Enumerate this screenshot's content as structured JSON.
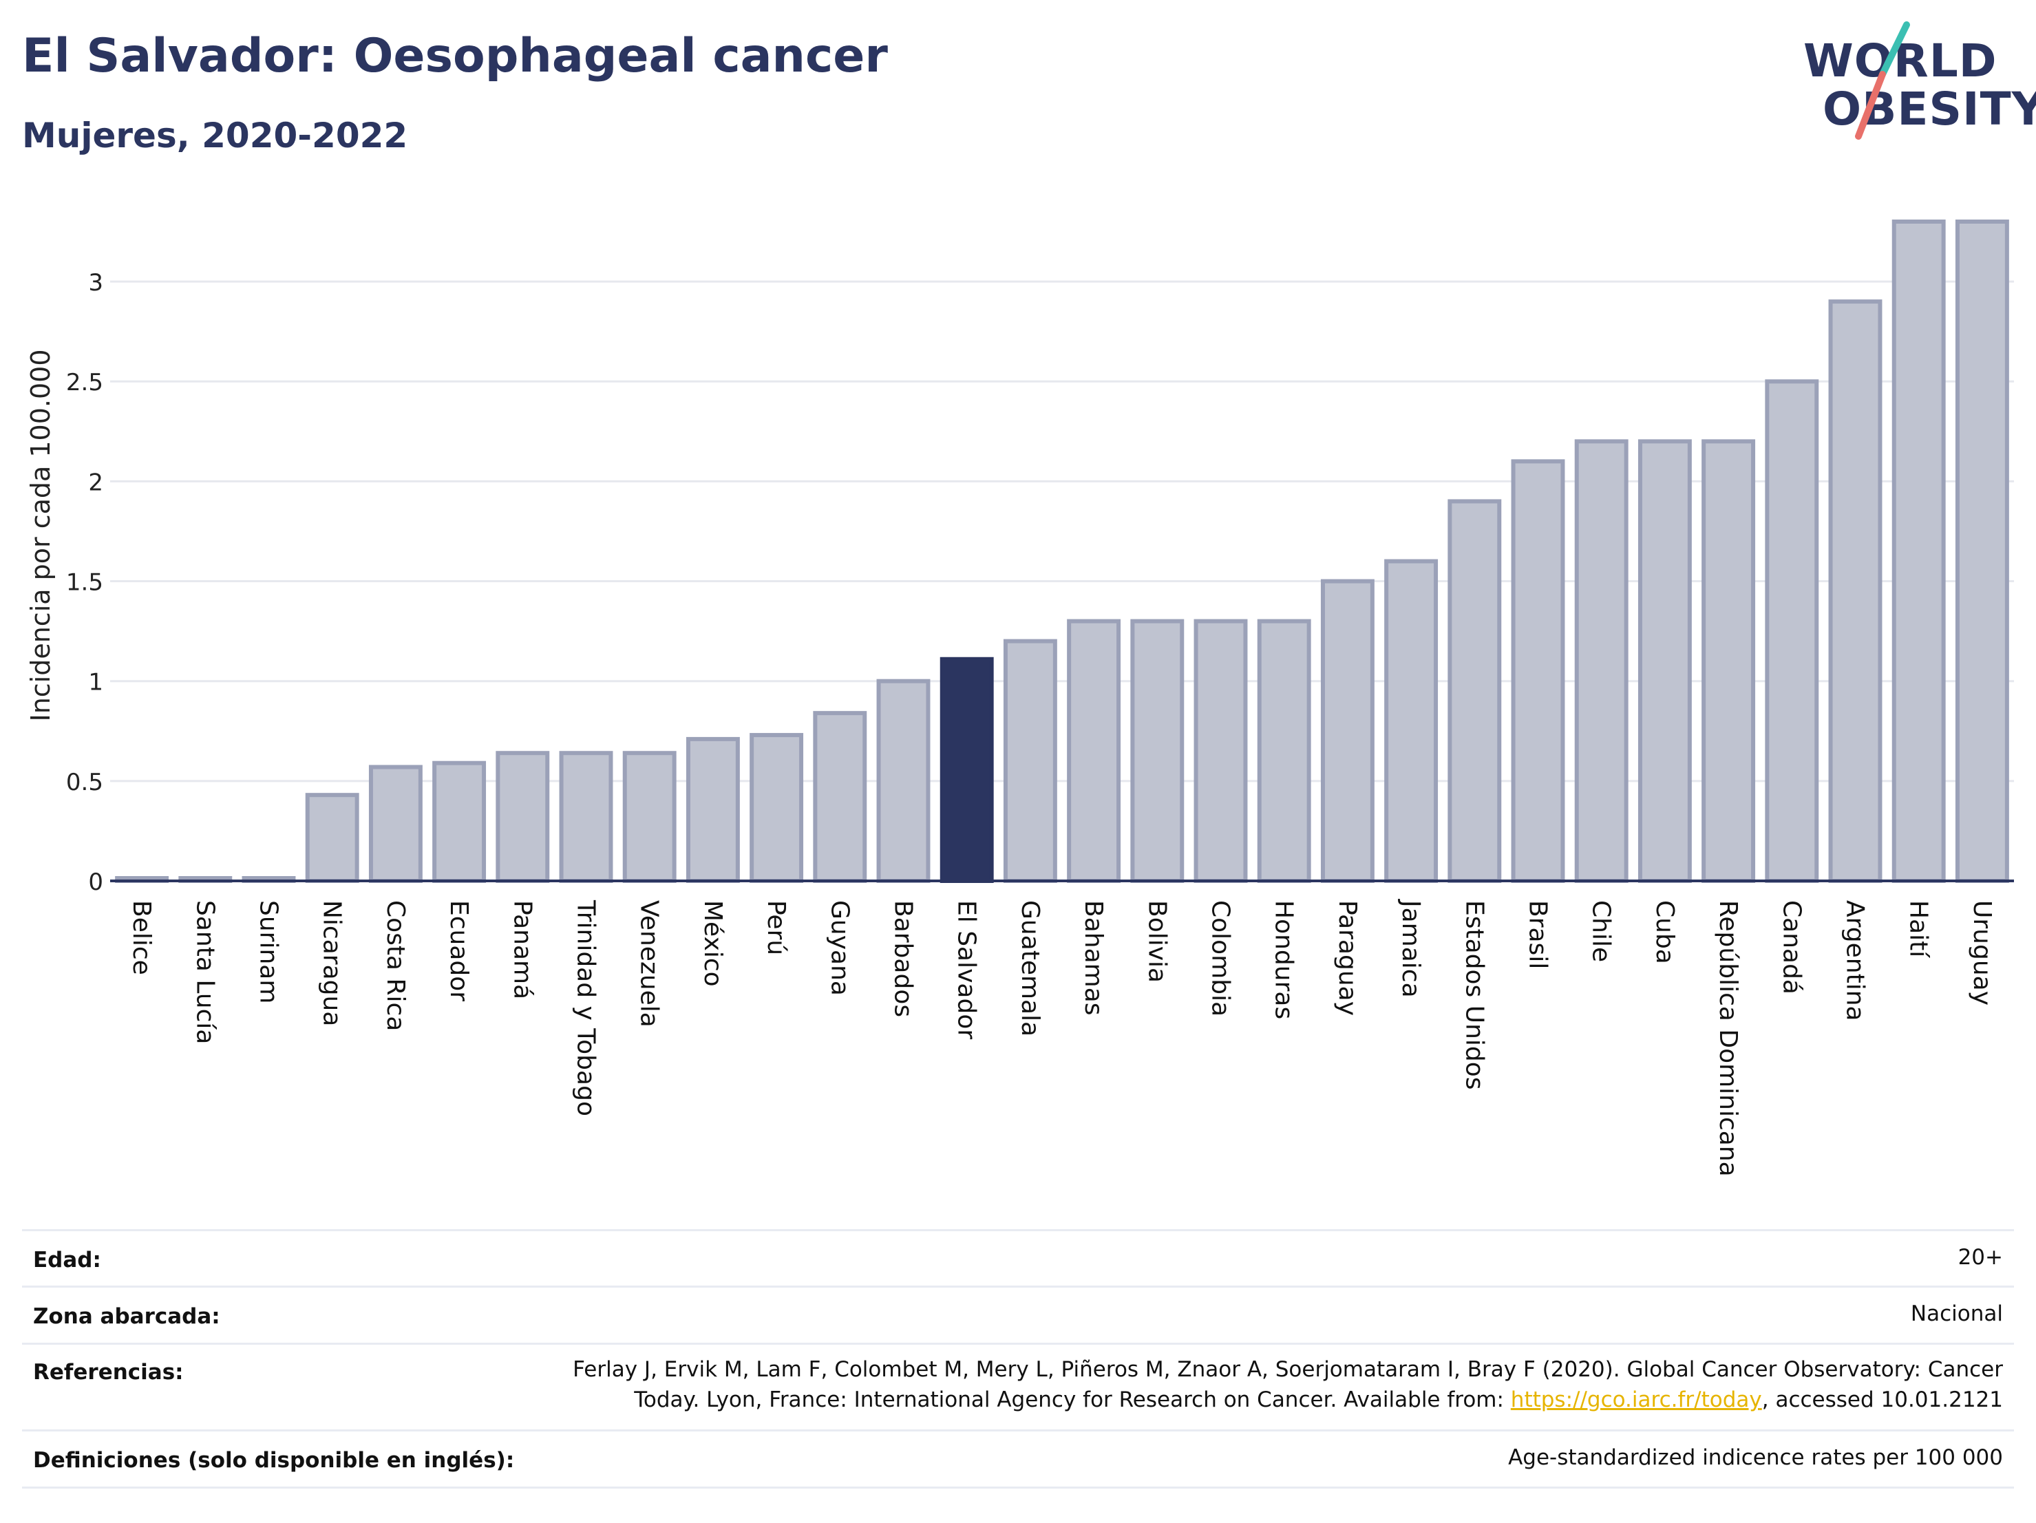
{
  "header": {
    "title": "El Salvador: Oesophageal cancer",
    "subtitle": "Mujeres, 2020-2022"
  },
  "logo": {
    "line1": "WORLD",
    "line2": "OBESITY"
  },
  "chart_data": {
    "type": "bar",
    "ylabel": "Incidencia por cada 100.000",
    "ylim": [
      0,
      3.4
    ],
    "yticks": [
      0,
      0.5,
      1,
      1.5,
      2,
      2.5,
      3
    ],
    "grid": true,
    "highlight": "El Salvador",
    "categories": [
      "Belice",
      "Santa Lucía",
      "Surinam",
      "Nicaragua",
      "Costa Rica",
      "Ecuador",
      "Panamá",
      "Trinidad y Tobago",
      "Venezuela",
      "México",
      "Perú",
      "Guyana",
      "Barbados",
      "El Salvador",
      "Guatemala",
      "Bahamas",
      "Bolivia",
      "Colombia",
      "Honduras",
      "Paraguay",
      "Jamaica",
      "Estados Unidos",
      "Brasil",
      "Chile",
      "Cuba",
      "República Dominicana",
      "Canadá",
      "Argentina",
      "Haití",
      "Uruguay"
    ],
    "values": [
      0,
      0,
      0,
      0.43,
      0.57,
      0.59,
      0.64,
      0.64,
      0.64,
      0.71,
      0.73,
      0.84,
      1.0,
      1.11,
      1.2,
      1.3,
      1.3,
      1.3,
      1.3,
      1.5,
      1.6,
      1.9,
      2.1,
      2.2,
      2.2,
      2.2,
      2.5,
      2.9,
      3.3,
      3.3
    ],
    "colors": {
      "bar": "#bfc3d0",
      "bar_border": "#9ba1b8",
      "highlight": "#2b3560",
      "grid": "#e6e8ee",
      "axis": "#2b3560"
    }
  },
  "info": [
    {
      "key": "Edad:",
      "value": "20+"
    },
    {
      "key": "Zona abarcada:",
      "value": "Nacional"
    },
    {
      "key": "Referencias:",
      "value_line1": "Ferlay J, Ervik M, Lam F, Colombet M, Mery L, Piñeros M, Znaor A, Soerjomataram I, Bray F (2020). Global Cancer Observatory: Cancer",
      "value_line2_pre": "Today. Lyon, France: International Agency for Research on Cancer. Available from: ",
      "link": "https://gco.iarc.fr/today",
      "value_line2_post": ", accessed 10.01.2121"
    },
    {
      "key": "Definiciones (solo disponible en inglés):",
      "value": "Age-standardized indicence rates per 100 000"
    }
  ]
}
